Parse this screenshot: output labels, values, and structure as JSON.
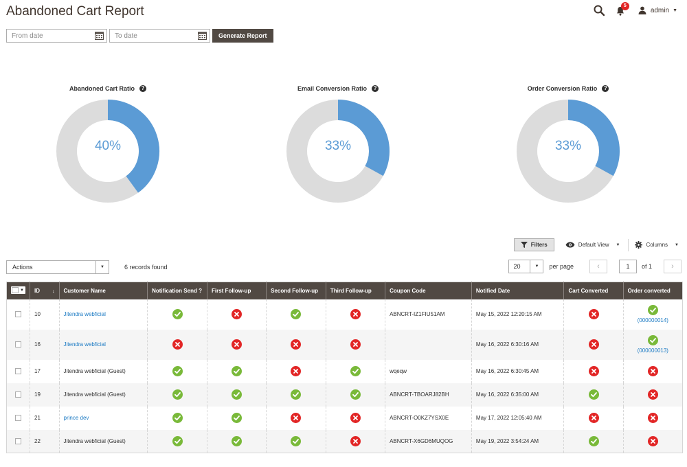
{
  "page": {
    "title": "Abandoned Cart Report"
  },
  "header": {
    "notifications_count": "5",
    "user": "admin"
  },
  "filters": {
    "from_placeholder": "From date",
    "to_placeholder": "To date",
    "generate_label": "Generate Report"
  },
  "donuts": [
    {
      "title": "Abandoned Cart Ratio",
      "percent_label": "40%",
      "value": 40
    },
    {
      "title": "Email Conversion Ratio",
      "percent_label": "33%",
      "value": 33
    },
    {
      "title": "Order Conversion Ratio",
      "percent_label": "33%",
      "value": 33
    }
  ],
  "colors": {
    "donut_fill": "#5b9bd5",
    "donut_track": "#dcdcdc",
    "header_bg": "#514943",
    "ok": "#79b939",
    "fail": "#e22626",
    "link": "#1979c3"
  },
  "toolbar": {
    "filters_label": "Filters",
    "view_label": "Default View",
    "columns_label": "Columns",
    "actions_label": "Actions",
    "records_found": "6 records found",
    "per_page_value": "20",
    "per_page_label": "per page",
    "page_current": "1",
    "page_total": "of 1"
  },
  "table": {
    "columns": [
      "ID",
      "Customer Name",
      "Notification Send ?",
      "First Follow-up",
      "Second Follow-up",
      "Third Follow-up",
      "Coupon Code",
      "Notified Date",
      "Cart Converted",
      "Order converted"
    ],
    "rows": [
      {
        "id": "10",
        "customer": "Jitendra webficial",
        "customer_link": true,
        "notification": "ok",
        "first": "fail",
        "second": "ok",
        "third": "fail",
        "coupon": "ABNCRT-IZ1FIU51AM",
        "date": "May 15, 2022 12:20:15 AM",
        "cart": "fail",
        "order": "ok",
        "order_ref": "(000000014)"
      },
      {
        "id": "16",
        "customer": "Jitendra webficial",
        "customer_link": true,
        "notification": "fail",
        "first": "fail",
        "second": "fail",
        "third": "fail",
        "coupon": "",
        "date": "May 16, 2022 6:30:16 AM",
        "cart": "fail",
        "order": "ok",
        "order_ref": "(000000013)"
      },
      {
        "id": "17",
        "customer": "Jitendra webficial (Guest)",
        "customer_link": false,
        "notification": "ok",
        "first": "ok",
        "second": "fail",
        "third": "ok",
        "coupon": "wqeqw",
        "date": "May 16, 2022 6:30:45 AM",
        "cart": "fail",
        "order": "fail",
        "order_ref": ""
      },
      {
        "id": "19",
        "customer": "Jitendra webficial (Guest)",
        "customer_link": false,
        "notification": "ok",
        "first": "ok",
        "second": "ok",
        "third": "ok",
        "coupon": "ABNCRT-TBOARJ82BH",
        "date": "May 16, 2022 6:35:00 AM",
        "cart": "ok",
        "order": "fail",
        "order_ref": ""
      },
      {
        "id": "21",
        "customer": "prince dev",
        "customer_link": true,
        "notification": "ok",
        "first": "ok",
        "second": "fail",
        "third": "fail",
        "coupon": "ABNCRT-O0KZ7YSX0E",
        "date": "May 17, 2022 12:05:40 AM",
        "cart": "fail",
        "order": "fail",
        "order_ref": ""
      },
      {
        "id": "22",
        "customer": "Jitendra webficial (Guest)",
        "customer_link": false,
        "notification": "ok",
        "first": "ok",
        "second": "ok",
        "third": "fail",
        "coupon": "ABNCRT-X6GD6MUQOG",
        "date": "May 19, 2022 3:54:24 AM",
        "cart": "ok",
        "order": "fail",
        "order_ref": ""
      }
    ]
  }
}
